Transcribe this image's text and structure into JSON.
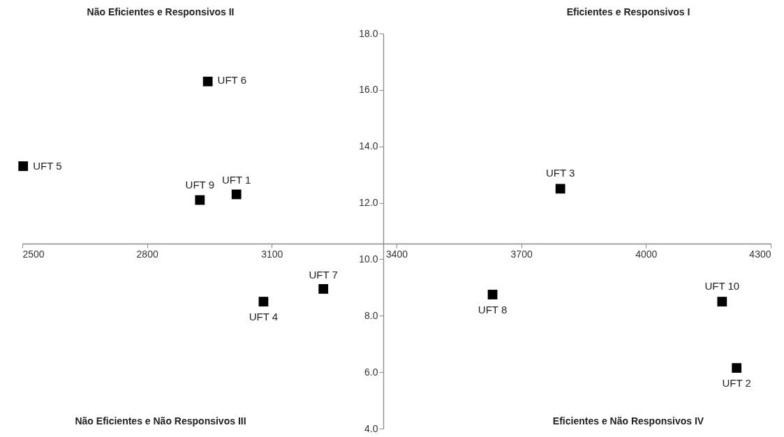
{
  "chart_data": {
    "type": "scatter",
    "x": [
      3015,
      4218,
      3794,
      3080,
      2502,
      2946,
      3224,
      3631,
      2927,
      4183
    ],
    "series": [
      {
        "color": "#000000",
        "values": [
          12.3,
          6.15,
          12.5,
          8.5,
          13.3,
          16.3,
          8.95,
          8.75,
          12.1,
          8.5
        ]
      }
    ],
    "marker": "square",
    "xlim": [
      2500,
      4300
    ],
    "xticks": [
      2500,
      2800,
      3100,
      3400,
      3700,
      4000,
      4300
    ],
    "ylim": [
      4,
      18
    ],
    "yticks": [
      {
        "value": 4,
        "label": "4.0"
      },
      {
        "value": 6,
        "label": "6.0"
      },
      {
        "value": 8,
        "label": "8.0"
      },
      {
        "value": 10,
        "label": "10.0"
      },
      {
        "value": 12,
        "label": "12.0"
      },
      {
        "value": 14,
        "label": "14.0"
      },
      {
        "value": 16,
        "label": "16.0"
      },
      {
        "value": 18,
        "label": "18.0"
      }
    ],
    "annotations": [
      {
        "text": "UFT 1",
        "x": 3015,
        "y": 12.3
      },
      {
        "text": "UFT 2",
        "x": 4218,
        "y": 6.15
      },
      {
        "text": "UFT 3",
        "x": 3794,
        "y": 12.5
      },
      {
        "text": "UFT 4",
        "x": 3080,
        "y": 8.5
      },
      {
        "text": "UFT 5",
        "x": 2502,
        "y": 13.3
      },
      {
        "text": "UFT 6",
        "x": 2946,
        "y": 16.3
      },
      {
        "text": "UFT 7",
        "x": 3224,
        "y": 8.95
      },
      {
        "text": "UFT 8",
        "x": 3631,
        "y": 8.75
      },
      {
        "text": "UFT 9",
        "x": 2927,
        "y": 12.1
      },
      {
        "text": "UFT 10",
        "x": 4183,
        "y": 8.5
      },
      "Não Eficientes e Responsivos II",
      "Eficientes e Responsivos I",
      "Não Eficientes e Não Responsivos III",
      "Eficientes e Não Responsivos IV"
    ]
  }
}
